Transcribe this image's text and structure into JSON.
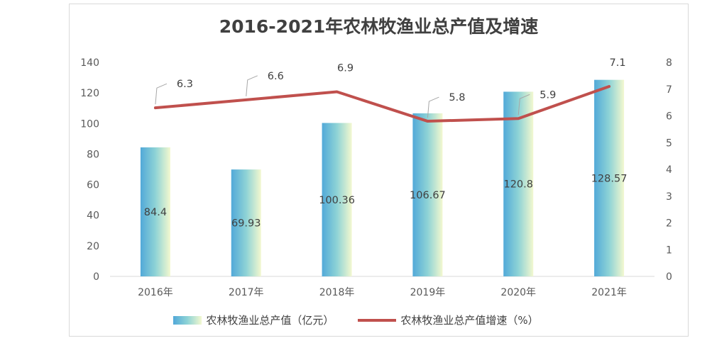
{
  "chart_data": {
    "type": "bar+line",
    "title": "2016-2021年农林牧渔业总产值及增速",
    "categories": [
      "2016年",
      "2017年",
      "2018年",
      "2019年",
      "2020年",
      "2021年"
    ],
    "series": [
      {
        "name": "农林牧渔业总产值（亿元）",
        "type": "bar",
        "axis": "left",
        "values": [
          84.4,
          69.93,
          100.36,
          106.67,
          120.8,
          128.57
        ],
        "labels": [
          "84.4",
          "69.93",
          "100.36",
          "106.67",
          "120.8",
          "128.57"
        ]
      },
      {
        "name": "农林牧渔业总产值增速（%）",
        "type": "line",
        "axis": "right",
        "values": [
          6.3,
          6.6,
          6.9,
          5.8,
          5.9,
          7.1
        ],
        "labels": [
          "6.3",
          "6.6",
          "6.9",
          "5.8",
          "5.9",
          "7.1"
        ]
      }
    ],
    "y_left": {
      "ticks": [
        "0",
        "20",
        "40",
        "60",
        "80",
        "100",
        "120",
        "140"
      ],
      "ylim": [
        0,
        140
      ]
    },
    "y_right": {
      "ticks": [
        "0",
        "1",
        "2",
        "3",
        "4",
        "5",
        "6",
        "7",
        "8"
      ],
      "ylim": [
        0,
        8
      ]
    },
    "grid": false,
    "legend_position": "bottom",
    "colors": {
      "bar_left": "#52a9d8",
      "bar_mid": "#8ed3d6",
      "bar_right": "#f3f8cf",
      "line": "#c0504d"
    }
  }
}
